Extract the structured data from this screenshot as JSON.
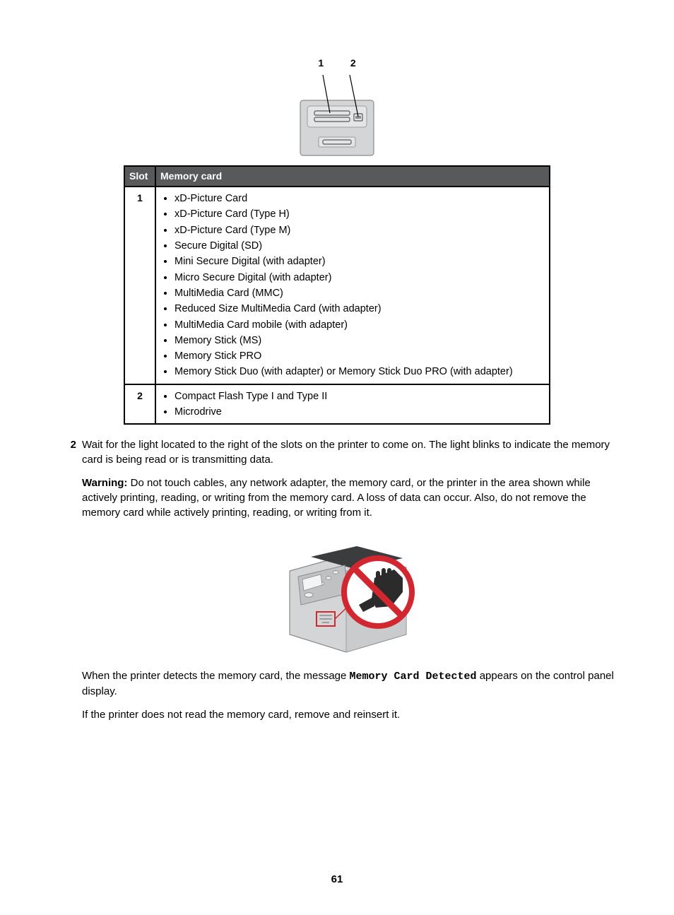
{
  "figure_slot": {
    "label1": "1",
    "label2": "2",
    "body_fill": "#d4d5d7",
    "body_stroke": "#8a8c8e",
    "slot_stroke": "#58595b",
    "pointer_stroke": "#000000"
  },
  "table": {
    "header_slot": "Slot",
    "header_card": "Memory card",
    "header_bg": "#58595b",
    "header_fg": "#ffffff",
    "border_color": "#000000",
    "rows": [
      {
        "slot": "1",
        "cards": [
          "xD-Picture Card",
          "xD-Picture Card (Type H)",
          "xD-Picture Card (Type M)",
          "Secure Digital (SD)",
          "Mini Secure Digital (with adapter)",
          "Micro Secure Digital (with adapter)",
          "MultiMedia Card (MMC)",
          "Reduced Size MultiMedia Card (with adapter)",
          "MultiMedia Card mobile (with adapter)",
          "Memory Stick (MS)",
          "Memory Stick PRO",
          "Memory Stick Duo (with adapter) or Memory Stick Duo PRO (with adapter)"
        ]
      },
      {
        "slot": "2",
        "cards": [
          "Compact Flash Type I and Type II",
          "Microdrive"
        ]
      }
    ]
  },
  "step": {
    "number": "2",
    "p1": "Wait for the light located to the right of the slots on the printer to come on. The light blinks to indicate the memory card is being read or is transmitting data.",
    "warning_label": "Warning:",
    "warning_text": " Do not touch cables, any network adapter, the memory card, or the printer in the area shown while actively printing, reading, or writing from the memory card. A loss of data can occur. Also, do not remove the memory card while actively printing, reading, or writing from it.",
    "p3_a": "When the printer detects the memory card, the message ",
    "p3_code": "Memory Card Detected",
    "p3_b": " appears on the control panel display.",
    "p4": "If the printer does not read the memory card, remove and reinsert it."
  },
  "figure_printer": {
    "body_fill": "#d4d5d7",
    "body_stroke": "#8a8c8e",
    "panel_fill": "#bfc1c3",
    "dark_fill": "#3a3c3e",
    "prohibit_red": "#d22630",
    "prohibit_white": "#ffffff",
    "hand_fill": "#2b2b2b",
    "callout_red": "#d22630"
  },
  "page_number": "61"
}
